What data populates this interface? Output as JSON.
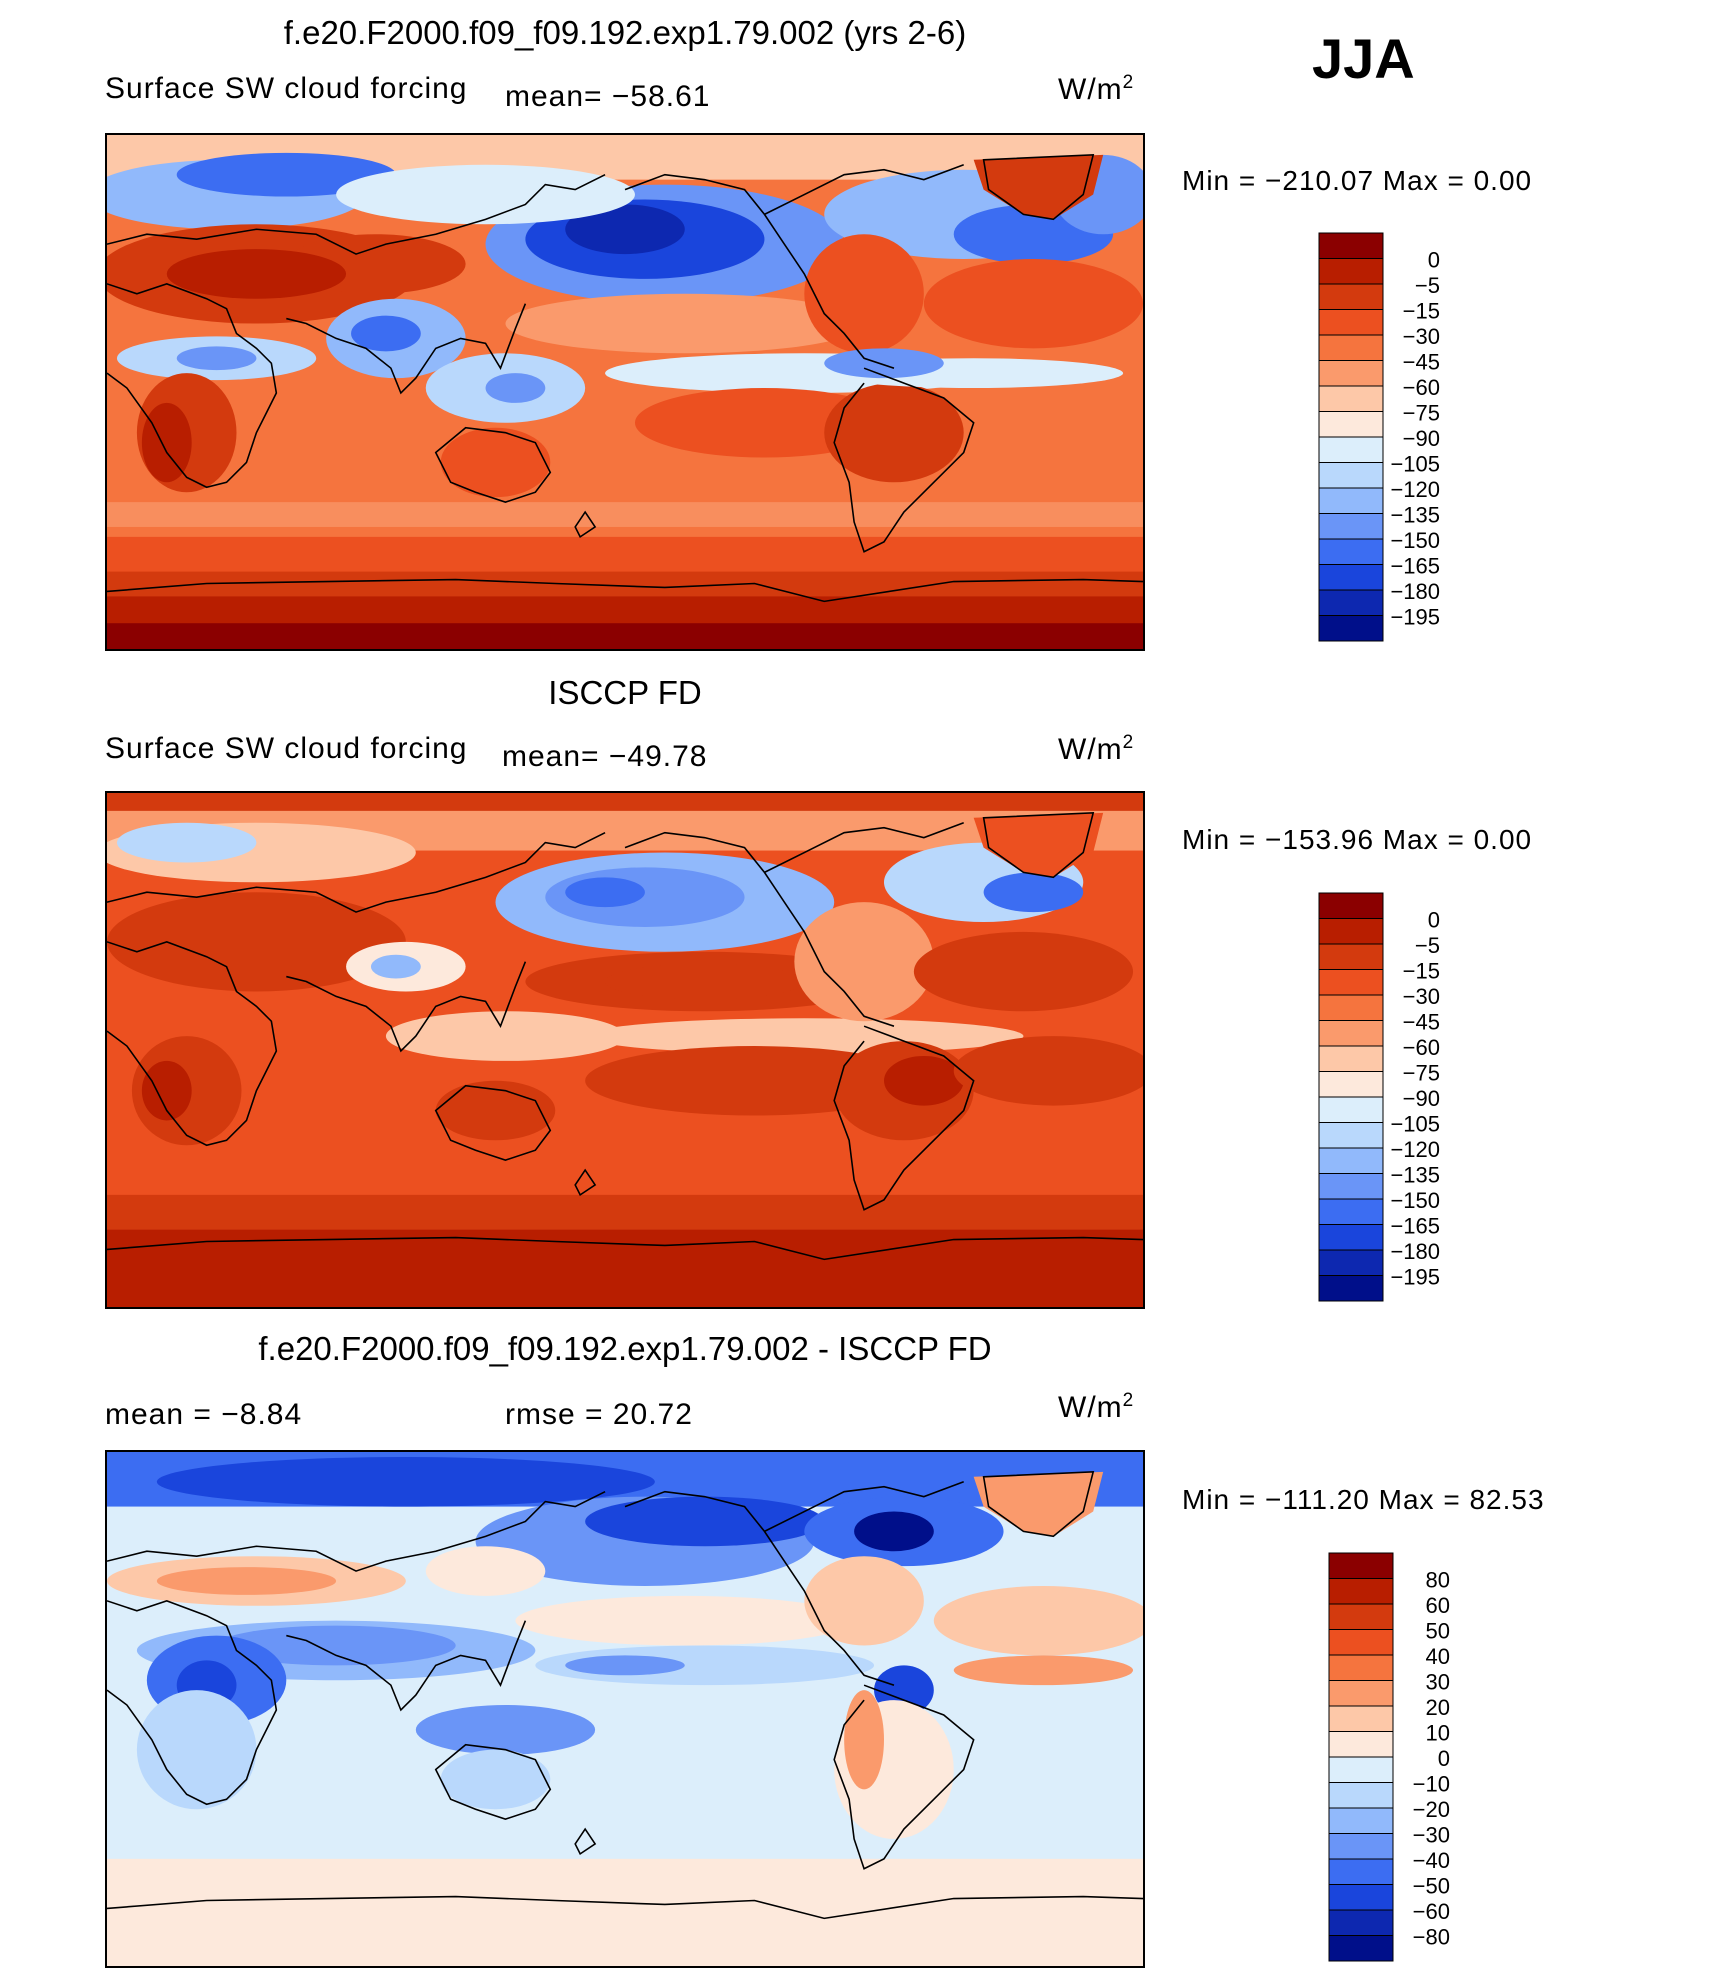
{
  "season": "JJA",
  "panels": [
    {
      "title": "f.e20.F2000.f09_f09.192.exp1.79.002 (yrs 2-6)",
      "variable": "Surface SW cloud forcing",
      "stat1": "mean=  −58.61",
      "units_base": "W/m",
      "units_exp": "2",
      "minmax_label": "Min  =  −210.07  Max  =      0.00",
      "colorbar": {
        "levels": [
          "0",
          "−5",
          "−15",
          "−30",
          "−45",
          "−60",
          "−75",
          "−90",
          "−105",
          "−120",
          "−135",
          "−150",
          "−165",
          "−180",
          "−195"
        ],
        "colors": [
          "#8b0000",
          "#b81e00",
          "#d33a0e",
          "#ec5020",
          "#f5743e",
          "#fa9a6c",
          "#fdc8a8",
          "#fde9dc",
          "#dceefb",
          "#b9d8fc",
          "#91b9fb",
          "#6a95f7",
          "#3c6df2",
          "#1a45dc",
          "#0d28b0",
          "#000f8a"
        ]
      }
    },
    {
      "title": "ISCCP FD",
      "variable": "Surface SW cloud forcing",
      "stat1": "mean=  −49.78",
      "units_base": "W/m",
      "units_exp": "2",
      "minmax_label": "Min  =  −153.96  Max  =      0.00",
      "colorbar": {
        "levels": [
          "0",
          "−5",
          "−15",
          "−30",
          "−45",
          "−60",
          "−75",
          "−90",
          "−105",
          "−120",
          "−135",
          "−150",
          "−165",
          "−180",
          "−195"
        ],
        "colors": [
          "#8b0000",
          "#b81e00",
          "#d33a0e",
          "#ec5020",
          "#f5743e",
          "#fa9a6c",
          "#fdc8a8",
          "#fde9dc",
          "#dceefb",
          "#b9d8fc",
          "#91b9fb",
          "#6a95f7",
          "#3c6df2",
          "#1a45dc",
          "#0d28b0",
          "#000f8a"
        ]
      }
    },
    {
      "title": "f.e20.F2000.f09_f09.192.exp1.79.002 - ISCCP FD",
      "stat1": "mean  =    −8.84",
      "stat2": "rmse  =    20.72",
      "units_base": "W/m",
      "units_exp": "2",
      "minmax_label": "Min  =  −111.20  Max  =    82.53",
      "colorbar": {
        "levels": [
          "80",
          "60",
          "50",
          "40",
          "30",
          "20",
          "10",
          "0",
          "−10",
          "−20",
          "−30",
          "−40",
          "−50",
          "−60",
          "−80"
        ],
        "colors": [
          "#8b0000",
          "#b81e00",
          "#d33a0e",
          "#ec5020",
          "#f5743e",
          "#fa9a6c",
          "#fdc8a8",
          "#fde9dc",
          "#dceefb",
          "#b9d8fc",
          "#91b9fb",
          "#6a95f7",
          "#3c6df2",
          "#1a45dc",
          "#0d28b0",
          "#000f8a"
        ]
      }
    }
  ]
}
